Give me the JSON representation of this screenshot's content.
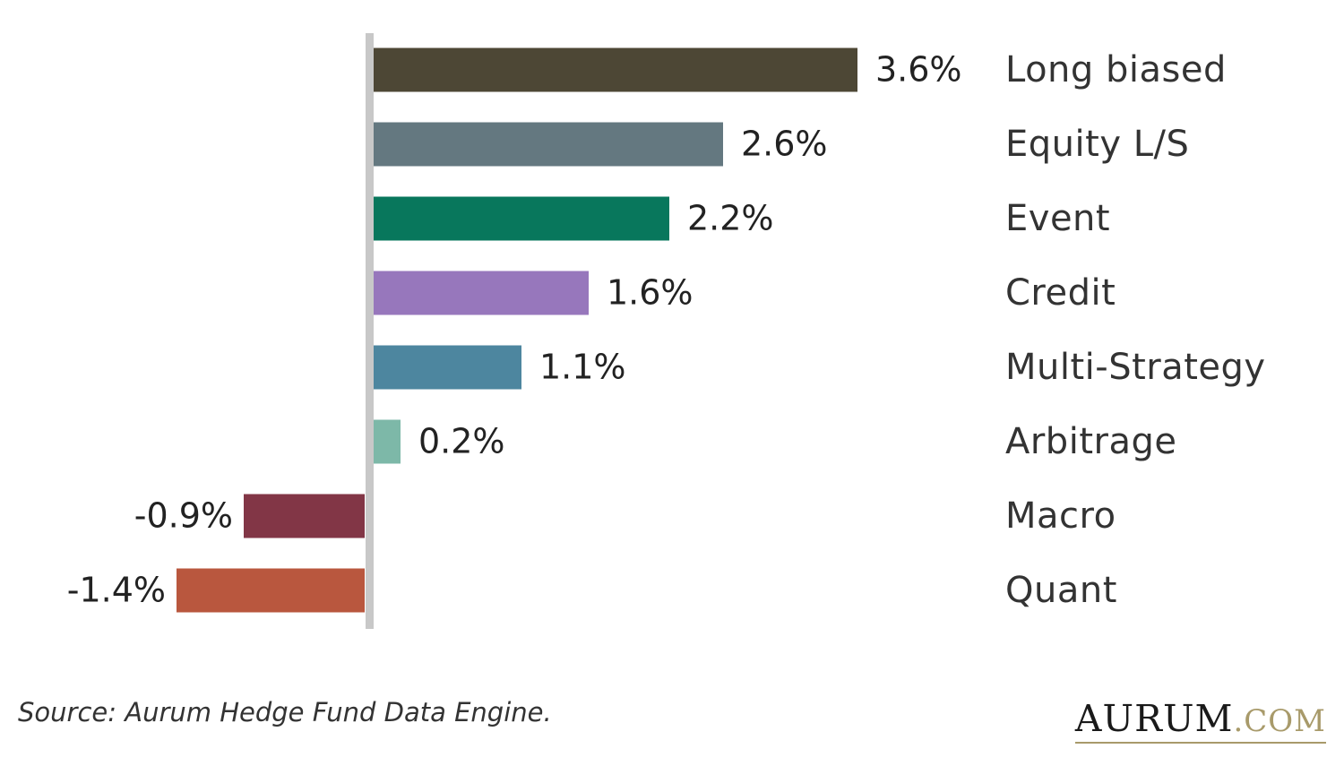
{
  "chart_data": {
    "type": "bar",
    "orientation": "horizontal",
    "categories": [
      "Long biased",
      "Equity L/S",
      "Event",
      "Credit",
      "Multi-Strategy",
      "Arbitrage",
      "Macro",
      "Quant"
    ],
    "values": [
      3.6,
      2.6,
      2.2,
      1.6,
      1.1,
      0.2,
      -0.9,
      -1.4
    ],
    "value_labels": [
      "3.6%",
      "2.6%",
      "2.2%",
      "1.6%",
      "1.1%",
      "0.2%",
      "-0.9%",
      "-1.4%"
    ],
    "colors": [
      "#4d4735",
      "#647880",
      "#08775c",
      "#9777bc",
      "#4d869f",
      "#7db8a8",
      "#823646",
      "#b9573e"
    ],
    "axis_color": "#c8c8c8",
    "title": "",
    "xlabel": "",
    "ylabel": "",
    "grid": false,
    "legend": "none"
  },
  "footer": {
    "source": "Source: Aurum Hedge Fund Data Engine.",
    "brand_main": "AURUM",
    "brand_tld": ".COM",
    "brand_color": "#a89a6a"
  }
}
